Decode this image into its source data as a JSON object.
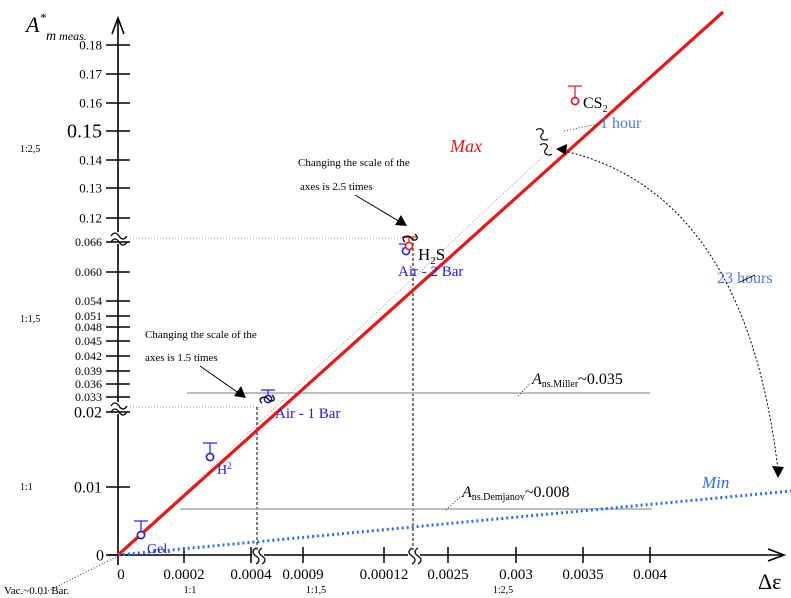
{
  "chart_data": {
    "type": "scatter",
    "title": "",
    "ylabel": {
      "main": "A",
      "sup": "*",
      "sub": "m meas."
    },
    "xlabel": "Δε",
    "x_segments": [
      {
        "ratio": "1:1",
        "ticks": [
          "0",
          "0.0002",
          "0.0004"
        ]
      },
      {
        "ratio": "1:1,5",
        "ticks": [
          "0.0009",
          "0.00012"
        ]
      },
      {
        "ratio": "1:2,5",
        "ticks": [
          "0.0025",
          "0.003",
          "0.0035",
          "0.004"
        ]
      }
    ],
    "y_segments": [
      {
        "ratio": "1:1",
        "ticks": [
          "0",
          "0.01",
          "0.02"
        ]
      },
      {
        "ratio": "1:1,5",
        "ticks": [
          "0.033",
          "0.036",
          "0.039",
          "0.042",
          "0.045",
          "0.048",
          "0.051",
          "0.054",
          "0.060",
          "0.066"
        ]
      },
      {
        "ratio": "1:2,5",
        "ticks": [
          "0.12",
          "0.13",
          "0.14",
          "0.15",
          "0.16",
          "0.17",
          "0.18"
        ]
      }
    ],
    "series": [
      {
        "name": "Max",
        "color": "#e31a1c",
        "style": "solid"
      },
      {
        "name": "Min",
        "color": "#2f6fe0",
        "style": "dotted"
      }
    ],
    "points": [
      {
        "label": "Gel.",
        "color": "#2020d0"
      },
      {
        "label": "H2",
        "color": "#2020d0"
      },
      {
        "label": "Air - 1 Bar",
        "color": "#2020d0"
      },
      {
        "label": "Air - 2 Bar",
        "color": "#2020d0"
      },
      {
        "label": "H2S",
        "color": "#e31a1c"
      },
      {
        "label": "CS2",
        "color": "#e31a1c"
      }
    ],
    "reference_lines": [
      {
        "symbol": "A",
        "sub": "ns.Miller",
        "value": "~0.035"
      },
      {
        "symbol": "A",
        "sub": "ns.Demjanov",
        "value": "~0.008"
      }
    ],
    "annotations": {
      "scale_note_upper": [
        "Changing the scale of the",
        "axes is 2.5 times"
      ],
      "scale_note_lower": [
        "Changing the scale of the",
        "axes is 1.5 times"
      ],
      "time_1": "1 hour",
      "time_23": "23 hours",
      "origin_note": "Vac.~0.01 Bar."
    }
  }
}
